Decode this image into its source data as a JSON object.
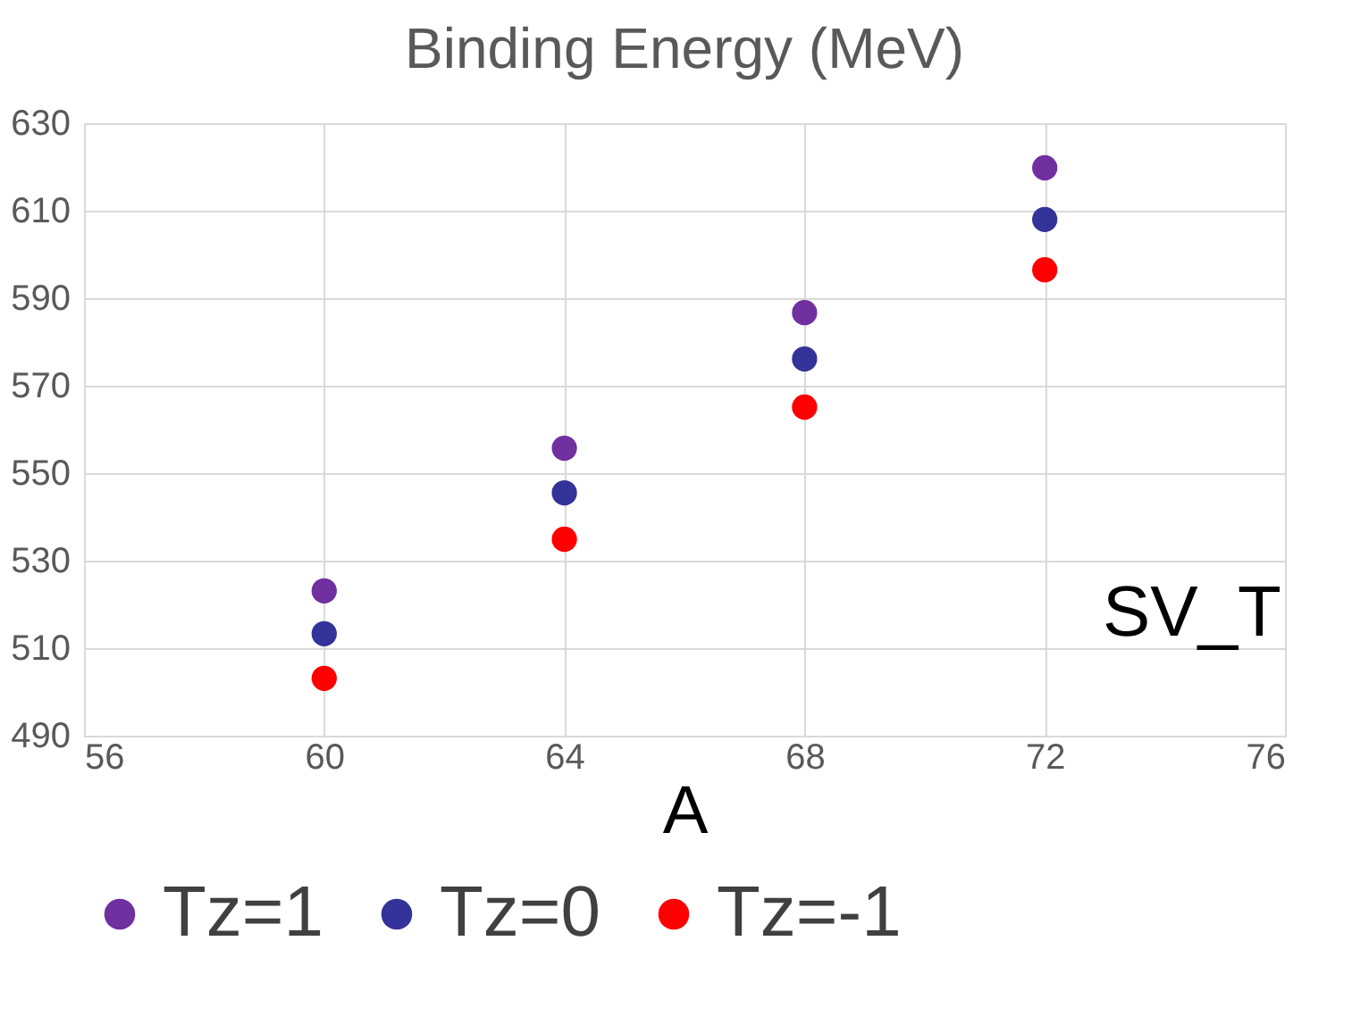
{
  "chart_data": {
    "type": "scatter",
    "title": "Binding Energy (MeV)",
    "xlabel": "A",
    "x": [
      60,
      64,
      68,
      72
    ],
    "series": [
      {
        "name": "Tz=1",
        "color": "#7030a0",
        "values": [
          523.1,
          555.7,
          586.7,
          619.8
        ]
      },
      {
        "name": "Tz=0",
        "color": "#333399",
        "values": [
          513.3,
          545.5,
          576.1,
          608.0
        ]
      },
      {
        "name": "Tz=-1",
        "color": "#ff0000",
        "values": [
          503.1,
          534.9,
          565.1,
          596.5
        ]
      }
    ],
    "xlim": [
      56,
      76
    ],
    "xticks": [
      56,
      60,
      64,
      68,
      72,
      76
    ],
    "ylim": [
      490,
      630
    ],
    "yticks": [
      490,
      510,
      530,
      550,
      570,
      590,
      610,
      630
    ],
    "grid": true,
    "legend": "bottom",
    "marker": "circle",
    "annotations": [
      "SV_T"
    ]
  }
}
